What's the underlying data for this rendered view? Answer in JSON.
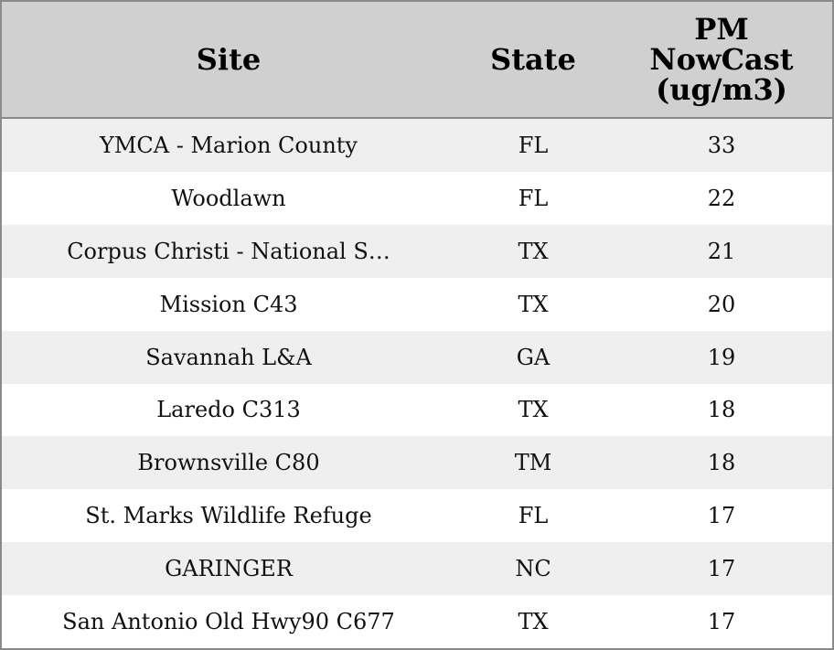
{
  "table": {
    "header": [
      "Site",
      "State",
      "PM NowCast (ug/m3)"
    ],
    "rows": [
      [
        "YMCA - Marion County",
        "FL",
        33
      ],
      [
        "Woodlawn",
        "FL",
        22
      ],
      [
        "Corpus Christi - National S…",
        "TX",
        21
      ],
      [
        "Mission C43",
        "TX",
        20
      ],
      [
        "Savannah L&A",
        "GA",
        19
      ],
      [
        "Laredo C313",
        "TX",
        18
      ],
      [
        "Brownsville C80",
        "TM",
        18
      ],
      [
        "St. Marks Wildlife Refuge",
        "FL",
        17
      ],
      [
        "GARINGER",
        "NC",
        17
      ],
      [
        "San Antonio Old Hwy90 C677",
        "TX",
        17
      ]
    ]
  }
}
